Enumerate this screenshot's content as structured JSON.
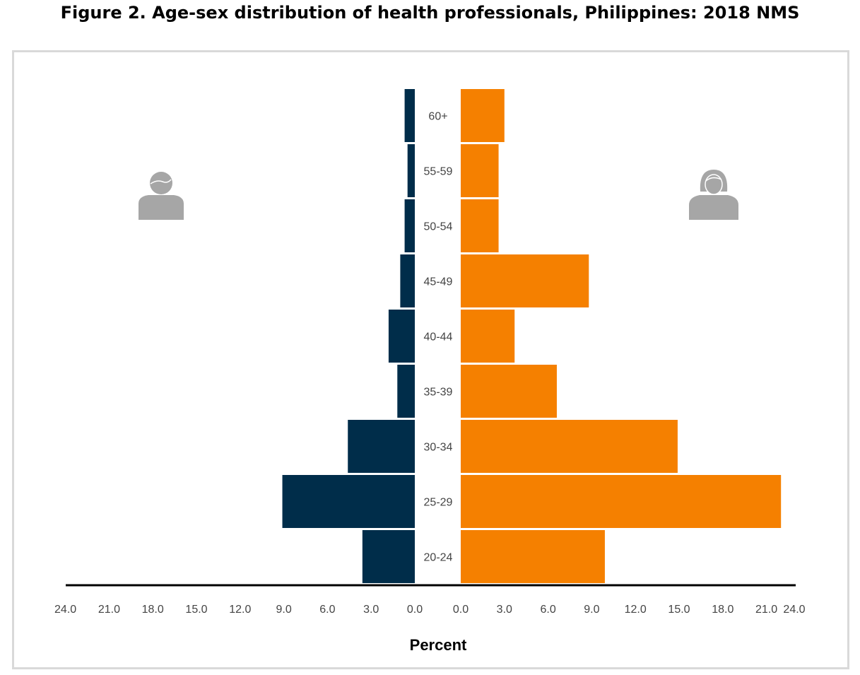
{
  "chart_data": {
    "type": "bar",
    "orientation": "horizontal",
    "subtype": "population-pyramid",
    "title": "Figure 2. Age-sex distribution of health professionals, Philippines: 2018 NMS",
    "xlabel": "Percent",
    "categories": [
      "60+",
      "55-59",
      "50-54",
      "45-49",
      "40-44",
      "35-39",
      "30-34",
      "25-29",
      "20-24"
    ],
    "series": [
      {
        "side": "left",
        "icon": "male-person-icon",
        "color": "#002d4a",
        "values": [
          0.7,
          0.5,
          0.7,
          1.0,
          1.8,
          1.2,
          4.6,
          9.1,
          3.6
        ]
      },
      {
        "side": "right",
        "icon": "female-person-icon",
        "color": "#f58000",
        "values": [
          3.0,
          2.6,
          2.6,
          8.8,
          3.7,
          6.6,
          14.9,
          22.0,
          9.9
        ]
      }
    ],
    "xlim": [
      0,
      24
    ],
    "xticks": [
      "0.0",
      "3.0",
      "6.0",
      "9.0",
      "12.0",
      "15.0",
      "18.0",
      "21.0",
      "24.0"
    ],
    "grid": false,
    "icon_color": "#a6a6a6"
  }
}
